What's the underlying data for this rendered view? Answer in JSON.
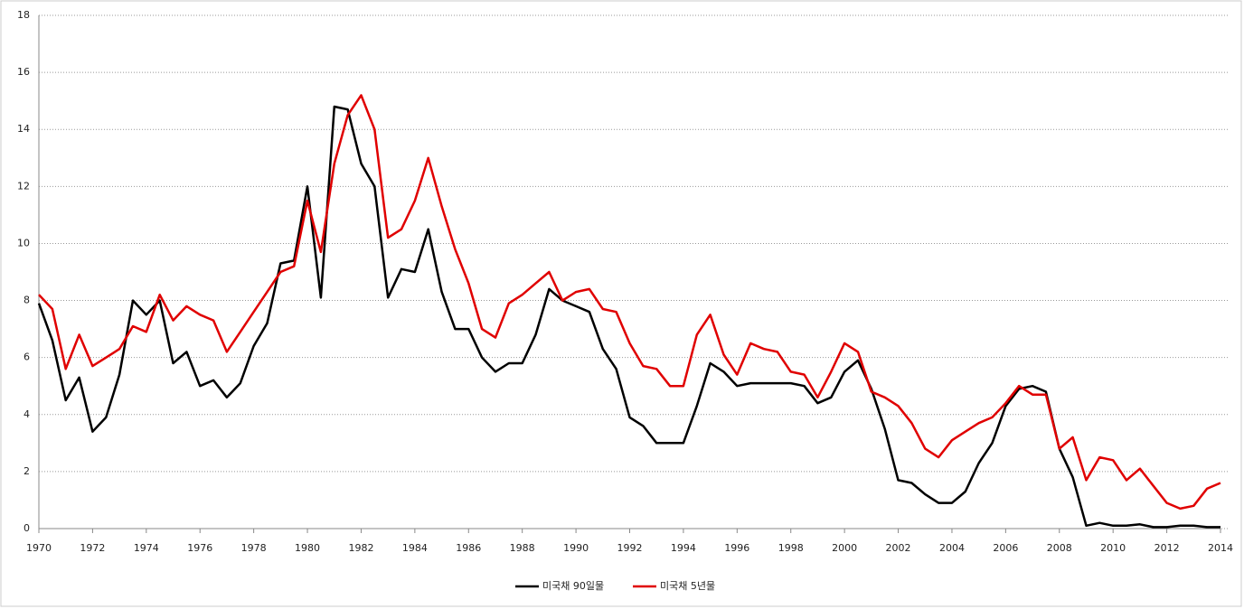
{
  "chart_data": {
    "type": "line",
    "x": [
      1970,
      1970.5,
      1971,
      1971.5,
      1972,
      1972.5,
      1973,
      1973.5,
      1974,
      1974.5,
      1975,
      1975.5,
      1976,
      1976.5,
      1977,
      1977.5,
      1978,
      1978.5,
      1979,
      1979.5,
      1980,
      1980.5,
      1981,
      1981.5,
      1982,
      1982.5,
      1983,
      1983.5,
      1984,
      1984.5,
      1985,
      1985.5,
      1986,
      1986.5,
      1987,
      1987.5,
      1988,
      1988.5,
      1989,
      1989.5,
      1990,
      1990.5,
      1991,
      1991.5,
      1992,
      1992.5,
      1993,
      1993.5,
      1994,
      1994.5,
      1995,
      1995.5,
      1996,
      1996.5,
      1997,
      1997.5,
      1998,
      1998.5,
      1999,
      1999.5,
      2000,
      2000.5,
      2001,
      2001.5,
      2002,
      2002.5,
      2003,
      2003.5,
      2004,
      2004.5,
      2005,
      2005.5,
      2006,
      2006.5,
      2007,
      2007.5,
      2008,
      2008.5,
      2009,
      2009.5,
      2010,
      2010.5,
      2011,
      2011.5,
      2012,
      2012.5,
      2013,
      2013.5,
      2014
    ],
    "series": [
      {
        "name": "미국채 90일물",
        "color": "#000000",
        "values": [
          7.9,
          6.6,
          4.5,
          5.3,
          3.4,
          3.9,
          5.4,
          8.0,
          7.5,
          8.0,
          5.8,
          6.2,
          5.0,
          5.2,
          4.6,
          5.1,
          6.4,
          7.2,
          9.3,
          9.4,
          12.0,
          8.1,
          14.8,
          14.7,
          12.8,
          12.0,
          8.1,
          9.1,
          9.0,
          10.5,
          8.3,
          7.0,
          7.0,
          6.0,
          5.5,
          5.8,
          5.8,
          6.8,
          8.4,
          8.0,
          7.8,
          7.6,
          6.3,
          5.6,
          3.9,
          3.6,
          3.0,
          3.0,
          3.0,
          4.3,
          5.8,
          5.5,
          5.0,
          5.1,
          5.1,
          5.1,
          5.1,
          5.0,
          4.4,
          4.6,
          5.5,
          5.9,
          4.9,
          3.5,
          1.7,
          1.6,
          1.2,
          0.9,
          0.9,
          1.3,
          2.3,
          3.0,
          4.3,
          4.9,
          5.0,
          4.8,
          2.8,
          1.8,
          0.1,
          0.2,
          0.1,
          0.1,
          0.15,
          0.05,
          0.05,
          0.1,
          0.1,
          0.05,
          0.05
        ]
      },
      {
        "name": "미국채 5년물",
        "color": "#e00000",
        "values": [
          8.2,
          7.7,
          5.6,
          6.8,
          5.7,
          6.0,
          6.3,
          7.1,
          6.9,
          8.2,
          7.3,
          7.8,
          7.5,
          7.3,
          6.2,
          6.9,
          7.6,
          8.3,
          9.0,
          9.2,
          11.5,
          9.7,
          12.8,
          14.5,
          15.2,
          14.0,
          10.2,
          10.5,
          11.5,
          13.0,
          11.3,
          9.8,
          8.6,
          7.0,
          6.7,
          7.9,
          8.2,
          8.6,
          9.0,
          8.0,
          8.3,
          8.4,
          7.7,
          7.6,
          6.5,
          5.7,
          5.6,
          5.0,
          5.0,
          6.8,
          7.5,
          6.1,
          5.4,
          6.5,
          6.3,
          6.2,
          5.5,
          5.4,
          4.6,
          5.5,
          6.5,
          6.2,
          4.8,
          4.6,
          4.3,
          3.7,
          2.8,
          2.5,
          3.1,
          3.4,
          3.7,
          3.9,
          4.4,
          5.0,
          4.7,
          4.7,
          2.8,
          3.2,
          1.7,
          2.5,
          2.4,
          1.7,
          2.1,
          1.5,
          0.9,
          0.7,
          0.8,
          1.4,
          1.6
        ]
      }
    ],
    "xlim": [
      1970,
      2014
    ],
    "ylim": [
      0,
      18
    ],
    "xticks": [
      1970,
      1972,
      1974,
      1976,
      1978,
      1980,
      1982,
      1984,
      1986,
      1988,
      1990,
      1992,
      1994,
      1996,
      1998,
      2000,
      2002,
      2004,
      2006,
      2008,
      2010,
      2012,
      2014
    ],
    "yticks": [
      0,
      2,
      4,
      6,
      8,
      10,
      12,
      14,
      16,
      18
    ],
    "grid": true,
    "legend": "bottom"
  }
}
